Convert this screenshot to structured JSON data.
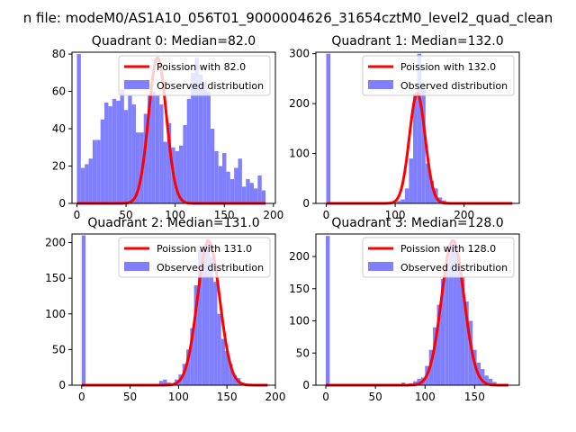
{
  "figure": {
    "title": "n file: modeM0/AS1A10_056T01_9000004626_31654cztM0_level2_quad_clean"
  },
  "colors": {
    "poisson": "#ff0000",
    "histogram": "#8080ff",
    "axes": "#000000",
    "background": "#ffffff"
  },
  "chart_data": [
    {
      "type": "bar",
      "title": "Quadrant 0: Median=82.0",
      "median": 82.0,
      "xlim": [
        -5,
        202
      ],
      "ylim": [
        0,
        81
      ],
      "xticks": [
        0,
        50,
        100,
        150,
        200
      ],
      "yticks": [
        0,
        20,
        40,
        60,
        80
      ],
      "bin_width": 4,
      "bin_starts": [
        0,
        4,
        8,
        12,
        16,
        20,
        24,
        28,
        32,
        36,
        40,
        44,
        48,
        52,
        56,
        60,
        64,
        68,
        72,
        76,
        80,
        84,
        88,
        92,
        96,
        100,
        104,
        108,
        112,
        116,
        120,
        124,
        128,
        132,
        136,
        140,
        144,
        148,
        152,
        156,
        160,
        164,
        168,
        172,
        176,
        180,
        184,
        188
      ],
      "hist": [
        80,
        19,
        21,
        24,
        34,
        34,
        45,
        54,
        52,
        56,
        55,
        61,
        50,
        58,
        53,
        38,
        38,
        48,
        58,
        60,
        58,
        53,
        33,
        43,
        30,
        28,
        31,
        42,
        56,
        70,
        78,
        69,
        65,
        60,
        40,
        28,
        20,
        27,
        17,
        13,
        19,
        24,
        9,
        13,
        11,
        8,
        15,
        7
      ],
      "poisson_peak": 78,
      "legend": [
        "Poission with 82.0",
        "Observed distribution"
      ]
    },
    {
      "type": "bar",
      "title": "Quadrant 1: Median=132.0",
      "median": 132.0,
      "xlim": [
        -15,
        280
      ],
      "ylim": [
        0,
        303
      ],
      "xticks": [
        0,
        100,
        200
      ],
      "yticks": [
        0,
        100,
        200,
        300
      ],
      "bin_width": 6,
      "bin_starts": [
        0,
        6,
        12,
        18,
        24,
        30,
        36,
        42,
        48,
        54,
        60,
        66,
        72,
        78,
        84,
        90,
        96,
        102,
        108,
        114,
        120,
        126,
        132,
        138,
        144,
        150,
        156,
        162,
        168,
        174,
        180,
        186,
        192,
        198,
        204,
        210,
        216,
        222,
        228,
        234,
        240,
        246,
        252,
        258,
        264
      ],
      "hist": [
        300,
        0,
        0,
        0,
        0,
        0,
        0,
        0,
        0,
        0,
        0,
        0,
        0,
        0,
        0,
        1,
        2,
        5,
        8,
        30,
        90,
        220,
        300,
        230,
        80,
        45,
        30,
        12,
        6,
        3,
        1,
        1,
        0,
        0,
        0,
        0,
        0,
        0,
        0,
        0,
        0,
        0,
        0,
        0,
        0
      ],
      "poisson_peak": 220,
      "legend": [
        "Poission with 132.0",
        "Observed distribution"
      ]
    },
    {
      "type": "bar",
      "title": "Quadrant 2: Median=131.0",
      "median": 131.0,
      "xlim": [
        -10,
        200
      ],
      "ylim": [
        0,
        212
      ],
      "xticks": [
        0,
        50,
        100,
        150,
        200
      ],
      "yticks": [
        0,
        50,
        100,
        150,
        200
      ],
      "bin_width": 4,
      "bin_starts": [
        0,
        4,
        8,
        12,
        16,
        20,
        24,
        28,
        32,
        36,
        40,
        44,
        48,
        52,
        56,
        60,
        64,
        68,
        72,
        76,
        80,
        84,
        88,
        92,
        96,
        100,
        104,
        108,
        112,
        116,
        120,
        124,
        128,
        132,
        136,
        140,
        144,
        148,
        152,
        156,
        160,
        164,
        168,
        172,
        176,
        180,
        184,
        188
      ],
      "hist": [
        210,
        0,
        0,
        0,
        0,
        0,
        0,
        0,
        0,
        0,
        0,
        0,
        0,
        0,
        0,
        0,
        0,
        0,
        0,
        0,
        6,
        8,
        4,
        2,
        8,
        15,
        30,
        50,
        80,
        140,
        190,
        195,
        205,
        180,
        145,
        100,
        65,
        48,
        30,
        14,
        10,
        4,
        2,
        1,
        0,
        0,
        0,
        0
      ],
      "poisson_peak": 202,
      "legend": [
        "Poission with 131.0",
        "Observed distribution"
      ]
    },
    {
      "type": "bar",
      "title": "Quadrant 3: Median=128.0",
      "median": 128.0,
      "xlim": [
        -10,
        195
      ],
      "ylim": [
        0,
        235
      ],
      "xticks": [
        0,
        50,
        100,
        150
      ],
      "yticks": [
        0,
        50,
        100,
        150,
        200
      ],
      "bin_width": 4,
      "bin_starts": [
        0,
        4,
        8,
        12,
        16,
        20,
        24,
        28,
        32,
        36,
        40,
        44,
        48,
        52,
        56,
        60,
        64,
        68,
        72,
        76,
        80,
        84,
        88,
        92,
        96,
        100,
        104,
        108,
        112,
        116,
        120,
        124,
        128,
        132,
        136,
        140,
        144,
        148,
        152,
        156,
        160,
        164,
        168,
        172,
        176,
        180
      ],
      "hist": [
        232,
        0,
        0,
        0,
        0,
        0,
        0,
        0,
        0,
        0,
        0,
        0,
        0,
        0,
        0,
        0,
        0,
        0,
        0,
        4,
        2,
        3,
        6,
        10,
        12,
        30,
        55,
        90,
        125,
        165,
        190,
        220,
        225,
        200,
        170,
        130,
        100,
        55,
        35,
        25,
        15,
        10,
        5,
        2,
        1,
        0
      ],
      "poisson_peak": 225,
      "legend": [
        "Poission with 128.0",
        "Observed distribution"
      ]
    }
  ]
}
